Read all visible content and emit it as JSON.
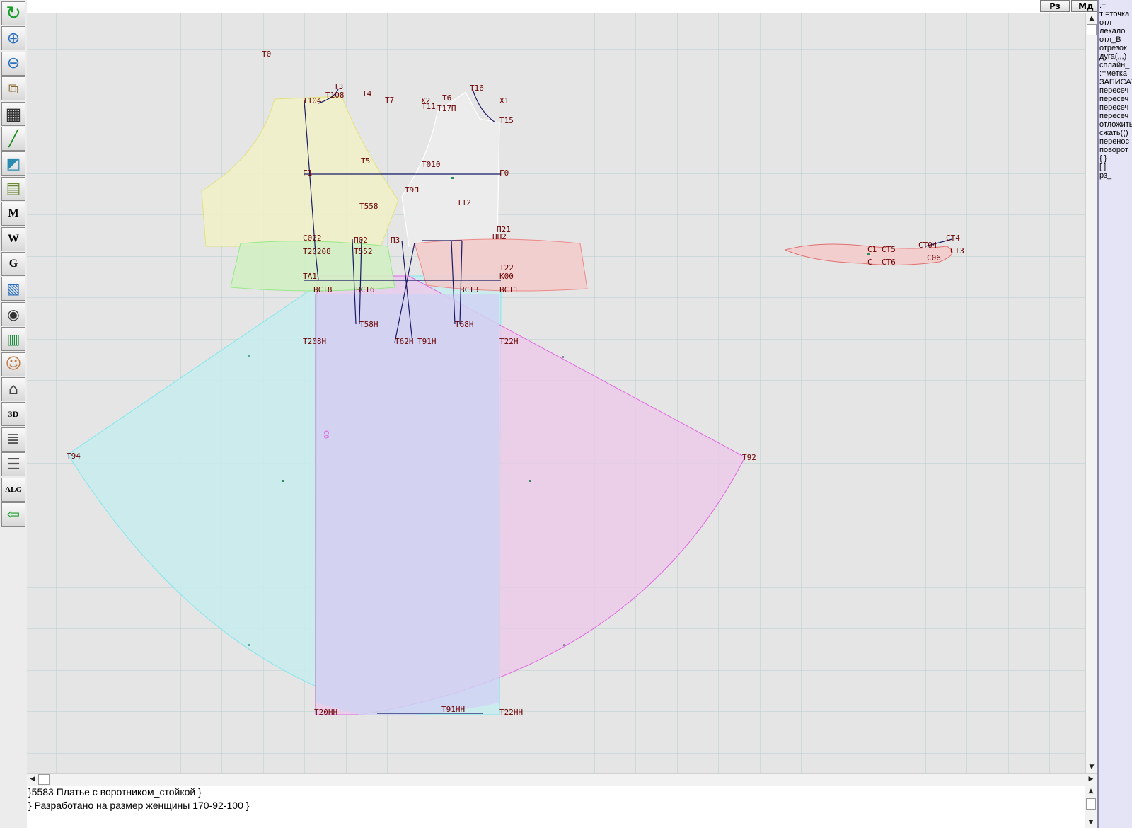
{
  "toolbar": {
    "buttons": [
      {
        "name": "refresh-icon"
      },
      {
        "name": "zoom-in-icon"
      },
      {
        "name": "zoom-out-icon"
      },
      {
        "name": "zoom-fit-icon"
      },
      {
        "name": "grid-icon"
      },
      {
        "name": "line-tool-icon"
      },
      {
        "name": "layout-icon"
      },
      {
        "name": "pattern-icon"
      },
      {
        "name": "measure-m-icon"
      },
      {
        "name": "compass-w-icon"
      },
      {
        "name": "graduation-g-icon"
      },
      {
        "name": "table-icon"
      },
      {
        "name": "camera-icon"
      },
      {
        "name": "spreadsheet-icon"
      },
      {
        "name": "woman-avatar-icon"
      },
      {
        "name": "garment-icon"
      },
      {
        "name": "3d-view-icon"
      },
      {
        "name": "text-sheet-icon"
      },
      {
        "name": "books-icon"
      },
      {
        "name": "algorithm-icon"
      },
      {
        "name": "exit-icon"
      }
    ],
    "m_label": "M",
    "w_label": "W",
    "g_label": "G",
    "three_d_label": "3D",
    "alg_label": "ALG"
  },
  "mode_buttons": {
    "rz": "Рз",
    "md": "Мд"
  },
  "right_panel": {
    "items": [
      ":=",
      "т:=точка",
      "отл",
      "лекало",
      "отл_В",
      "отрезок",
      "дуга(,,,)",
      "сплайн_",
      ":=метка",
      "ЗАПИСАТЬ",
      "пересеч",
      "пересеч",
      "пересеч",
      "пересеч",
      "отложить",
      "сжать(()",
      "перенос",
      "поворот",
      "{ }",
      "[ ]",
      "рз_"
    ]
  },
  "console": {
    "lines": [
      "}5583  Платье с воротником_стойкой }",
      "}  Разработано на размер женщины 170-92-100 }"
    ]
  },
  "canvas": {
    "labels": {
      "t0": "Т0",
      "t3": "Т3",
      "t4": "Т4",
      "t6": "Т6",
      "t7": "Т7",
      "t16": "Т16",
      "x1": "Х1",
      "x2": "Х2",
      "t104": "Т104",
      "t108": "Т108",
      "t11": "Т11",
      "t17p": "Т17П",
      "t15": "Т15",
      "t5": "Т5",
      "t010": "Т010",
      "g1": "Г1",
      "g0": "Г0",
      "t9p": "Т9П",
      "t558": "Т558",
      "t12": "Т12",
      "p02": "П02",
      "p022": "С022",
      "p3": "П3",
      "p021": "П21",
      "p2": "ПП2",
      "t208": "Т20208",
      "t552": "Т552",
      "t22": "Т22",
      "k00": "К00",
      "ta1": "ТА1",
      "vct8": "ВСТ8",
      "vct6": "ВСТ6",
      "vct3": "ВСТ3",
      "vct1": "ВСТ1",
      "t58n": "Т58Н",
      "t68n": "Т68Н",
      "t208n": "Т208Н",
      "t62n": "Т62Н",
      "t91n": "Т91Н",
      "t22n": "Т22Н",
      "t94": "Т94",
      "t92": "Т92",
      "t20nn": "Т20НН",
      "t91nn": "Т91НН",
      "t22nn": "Т22НН",
      "side_vert": "Сб",
      "c1": "С1",
      "ct5": "СТ5",
      "ct4": "СТ4",
      "ct3": "СТ3",
      "ct04": "СТ04",
      "c06": "С06",
      "ct6": "СТ6",
      "c2": "С"
    }
  }
}
